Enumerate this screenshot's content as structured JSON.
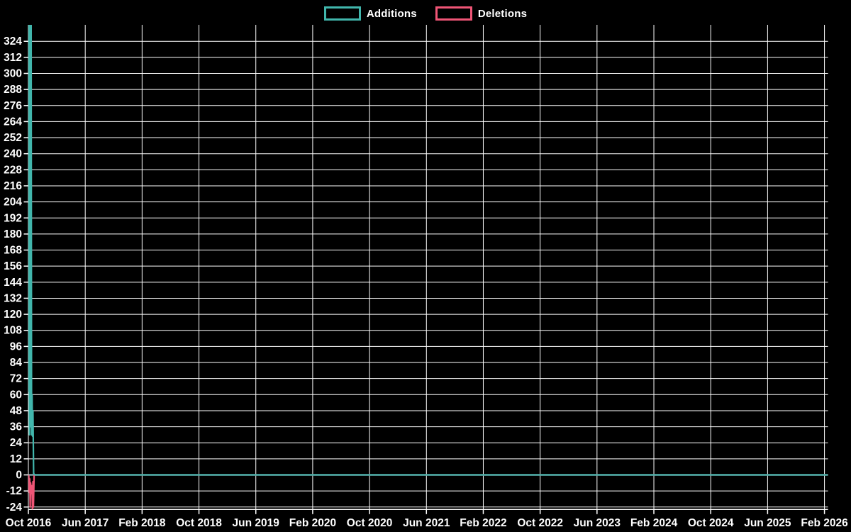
{
  "legend": {
    "items": [
      {
        "label": "Additions",
        "color": "#41b6ac"
      },
      {
        "label": "Deletions",
        "color": "#ef5576"
      }
    ]
  },
  "colors": {
    "background": "#000000",
    "grid": "#ffffff",
    "axis_text": "#ffffff",
    "zero_line": "#8db4bc",
    "additions": "#41b6ac",
    "deletions": "#ef5576"
  },
  "chart_data": {
    "type": "line",
    "title": "",
    "xlabel": "",
    "ylabel": "",
    "legend_position": "top",
    "grid": true,
    "x_axis": {
      "x_unit": "months_since_2016-10",
      "tick_interval_months": 8,
      "tick_labels": [
        "Oct 2016",
        "Jun 2017",
        "Feb 2018",
        "Oct 2018",
        "Jun 2019",
        "Feb 2020",
        "Oct 2020",
        "Jun 2021",
        "Feb 2022",
        "Oct 2022",
        "Jun 2023",
        "Feb 2024",
        "Oct 2024",
        "Jun 2025",
        "Feb 2026"
      ],
      "data_end_month_offset": 112.5
    },
    "y_axis": {
      "tick_step": 12,
      "tick_labels": [
        324,
        312,
        300,
        288,
        276,
        264,
        252,
        240,
        228,
        216,
        204,
        192,
        180,
        168,
        156,
        144,
        132,
        120,
        108,
        96,
        84,
        72,
        60,
        48,
        36,
        24,
        12,
        0,
        -12,
        -24
      ],
      "visible_range": [
        -26,
        336
      ],
      "peak_clipped_at_top": true
    },
    "zero_line": {
      "value": 0,
      "color": "#8db4bc"
    },
    "series": [
      {
        "name": "Additions",
        "color": "#41b6ac",
        "points": [
          [
            0,
            62
          ],
          [
            0.065,
            336
          ],
          [
            0.16,
            30
          ],
          [
            0.23,
            336
          ],
          [
            0.32,
            36
          ],
          [
            0.39,
            336
          ],
          [
            0.45,
            30
          ],
          [
            0.52,
            60
          ],
          [
            0.58,
            29
          ],
          [
            0.645,
            48
          ],
          [
            0.74,
            1
          ],
          [
            0.9,
            0
          ],
          [
            112.45,
            0
          ]
        ]
      },
      {
        "name": "Deletions",
        "color": "#ef5576",
        "points": [
          [
            0,
            0
          ],
          [
            0.065,
            -1
          ],
          [
            0.13,
            -13
          ],
          [
            0.19,
            -3
          ],
          [
            0.26,
            -24
          ],
          [
            0.32,
            -6
          ],
          [
            0.39,
            -14
          ],
          [
            0.45,
            -8
          ],
          [
            0.52,
            -13
          ],
          [
            0.58,
            -26
          ],
          [
            0.645,
            -5
          ],
          [
            0.71,
            -24
          ],
          [
            0.81,
            0
          ],
          [
            112.45,
            0
          ]
        ]
      }
    ]
  }
}
